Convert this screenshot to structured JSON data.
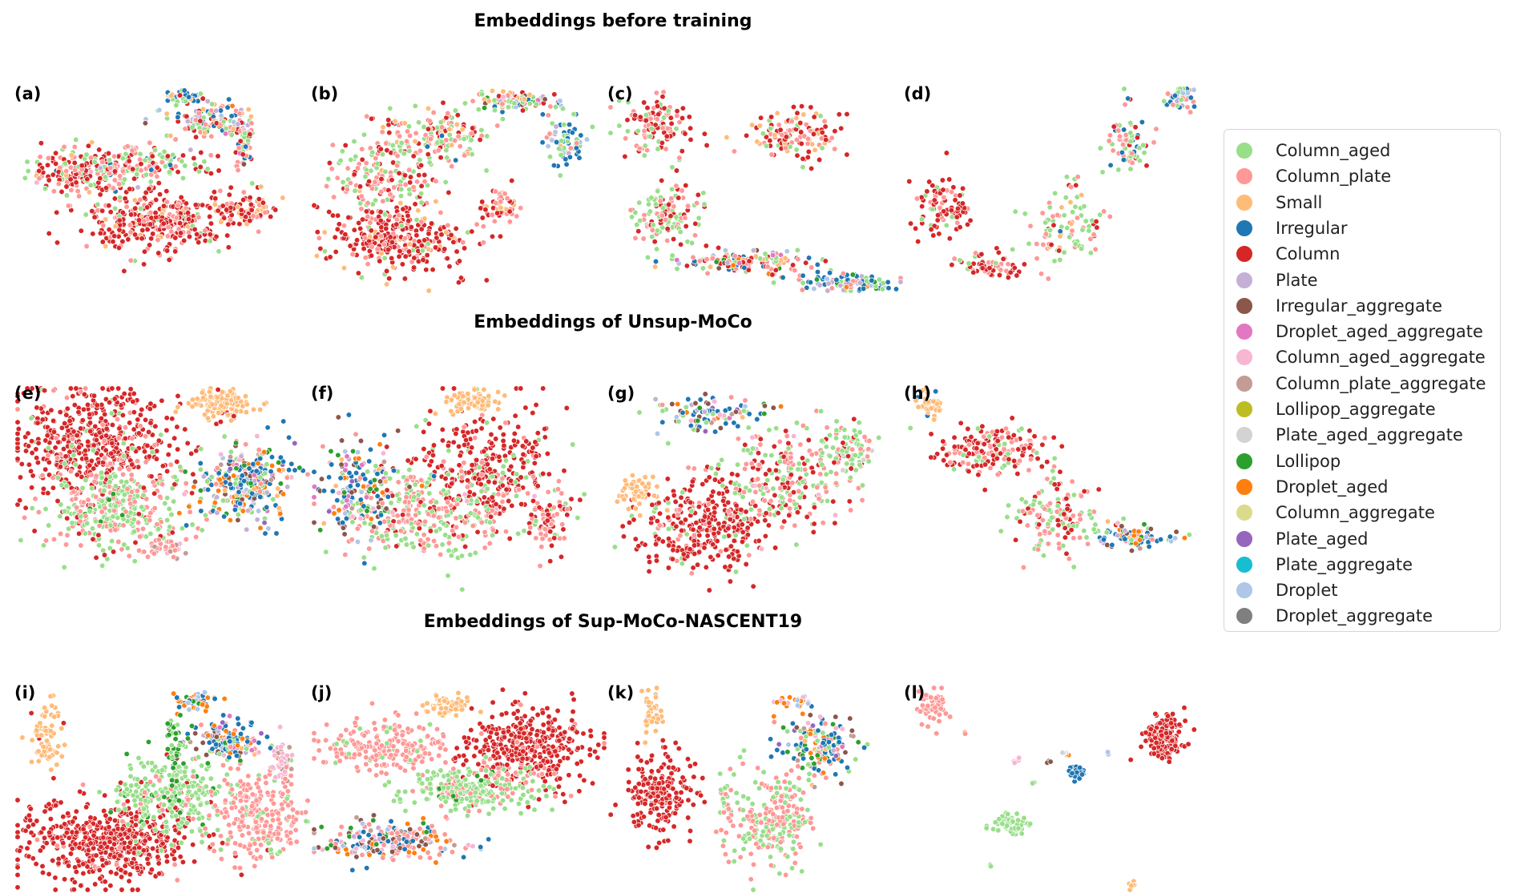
{
  "row_titles": [
    "Embeddings before training",
    "Embeddings of Unsup-MoCo",
    "Embeddings of Sup-MoCo-NASCENT19"
  ],
  "chart_data": {
    "type": "scatter",
    "panel_labels": [
      "(a)",
      "(b)",
      "(c)",
      "(d)",
      "(e)",
      "(f)",
      "(g)",
      "(h)",
      "(i)",
      "(j)",
      "(k)",
      "(l)"
    ],
    "axes": "hidden",
    "grid": false,
    "legend_position": "right",
    "classes": [
      {
        "name": "Column_aged",
        "color": "#98df8a"
      },
      {
        "name": "Column_plate",
        "color": "#ff9896"
      },
      {
        "name": "Small",
        "color": "#ffbb78"
      },
      {
        "name": "Irregular",
        "color": "#1f77b4"
      },
      {
        "name": "Column",
        "color": "#d62728"
      },
      {
        "name": "Plate",
        "color": "#c5b0d5"
      },
      {
        "name": "Irregular_aggregate",
        "color": "#8c564b"
      },
      {
        "name": "Droplet_aged_aggregate",
        "color": "#e377c2"
      },
      {
        "name": "Column_aged_aggregate",
        "color": "#f7b6d2"
      },
      {
        "name": "Column_plate_aggregate",
        "color": "#c49c94"
      },
      {
        "name": "Lollipop_aggregate",
        "color": "#bcbd22"
      },
      {
        "name": "Plate_aged_aggregate",
        "color": "#d3d3d3"
      },
      {
        "name": "Lollipop",
        "color": "#2ca02c"
      },
      {
        "name": "Droplet_aged",
        "color": "#ff7f0e"
      },
      {
        "name": "Column_aggregate",
        "color": "#dbdb8d"
      },
      {
        "name": "Plate_aged",
        "color": "#9467bd"
      },
      {
        "name": "Plate_aggregate",
        "color": "#17becf"
      },
      {
        "name": "Droplet",
        "color": "#aec7e8"
      },
      {
        "name": "Droplet_aggregate",
        "color": "#7f7f7f"
      }
    ]
  }
}
